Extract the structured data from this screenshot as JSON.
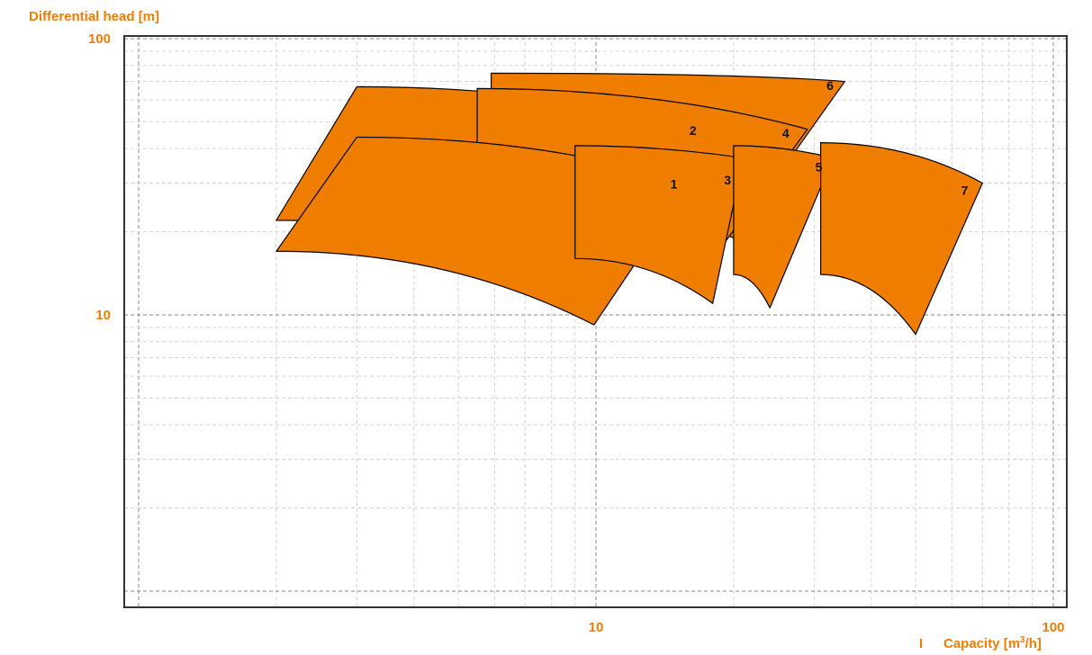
{
  "chart_data": {
    "type": "area",
    "title": "",
    "xlabel": "Capacity [m3/h]",
    "ylabel": "Differential head [m]",
    "x_scale": "log",
    "y_scale": "log",
    "xlim": [
      1,
      100
    ],
    "ylim": [
      1.6,
      100
    ],
    "grid": true,
    "x_ticks": [
      {
        "value": 10,
        "label": "10"
      },
      {
        "value": 100,
        "label": "100"
      }
    ],
    "y_ticks": [
      {
        "value": 10,
        "label": "10"
      },
      {
        "value": 100,
        "label": "100"
      }
    ],
    "x_axis_prefix": "I",
    "colors": {
      "fill": "#ee7d00",
      "outline": "#000000",
      "axis_text": "#ee7d00",
      "axis_line": "#333333",
      "grid_major": "#888888",
      "grid_minor": "#d4d4d4"
    },
    "series": [
      {
        "name": "1",
        "corners": {
          "top_left": [
            3,
            44
          ],
          "top_right": [
            16,
            30
          ],
          "bottom_right": [
            9.9,
            9.2
          ],
          "bottom_left": [
            2,
            17
          ]
        },
        "top_bend": 0.55,
        "bottom_bend": 0.55
      },
      {
        "name": "2",
        "corners": {
          "top_left": [
            3,
            67
          ],
          "top_right": [
            18,
            47
          ],
          "bottom_right": [
            11,
            14
          ],
          "bottom_left": [
            2,
            22
          ]
        },
        "top_bend": 0.55,
        "bottom_bend": 0.55
      },
      {
        "name": "3",
        "corners": {
          "top_left": [
            9,
            41
          ],
          "top_right": [
            21,
            37
          ],
          "bottom_right": [
            18,
            11
          ],
          "bottom_left": [
            9,
            16
          ]
        },
        "top_bend": 0.5,
        "bottom_bend": 0.55
      },
      {
        "name": "4",
        "corners": {
          "top_left": [
            5.5,
            66
          ],
          "top_right": [
            29,
            47
          ],
          "bottom_right": [
            17,
            14
          ],
          "bottom_left": [
            5.5,
            22
          ]
        },
        "top_bend": 0.55,
        "bottom_bend": 0.55
      },
      {
        "name": "5",
        "corners": {
          "top_left": [
            20,
            41
          ],
          "top_right": [
            33,
            37
          ],
          "bottom_right": [
            24,
            10.6
          ],
          "bottom_left": [
            20,
            14
          ]
        },
        "top_bend": 0.5,
        "bottom_bend": 0.55
      },
      {
        "name": "6",
        "corners": {
          "top_left": [
            5.9,
            75
          ],
          "top_right": [
            35,
            70
          ],
          "bottom_right": [
            20,
            19
          ],
          "bottom_left": [
            5.9,
            29
          ]
        },
        "top_bend": 0.7,
        "bottom_bend": 0.5
      },
      {
        "name": "7",
        "corners": {
          "top_left": [
            31,
            42
          ],
          "top_right": [
            70,
            30
          ],
          "bottom_right": [
            50,
            8.5
          ],
          "bottom_left": [
            31,
            14
          ]
        },
        "top_bend": 0.55,
        "bottom_bend": 0.55
      }
    ],
    "label_positions": [
      {
        "name": "1",
        "x": 14.8,
        "y": 29.5
      },
      {
        "name": "2",
        "x": 16.3,
        "y": 46
      },
      {
        "name": "3",
        "x": 19.4,
        "y": 30.5
      },
      {
        "name": "4",
        "x": 26,
        "y": 45
      },
      {
        "name": "5",
        "x": 30.7,
        "y": 34
      },
      {
        "name": "6",
        "x": 32.5,
        "y": 67
      },
      {
        "name": "7",
        "x": 64,
        "y": 28
      }
    ]
  }
}
